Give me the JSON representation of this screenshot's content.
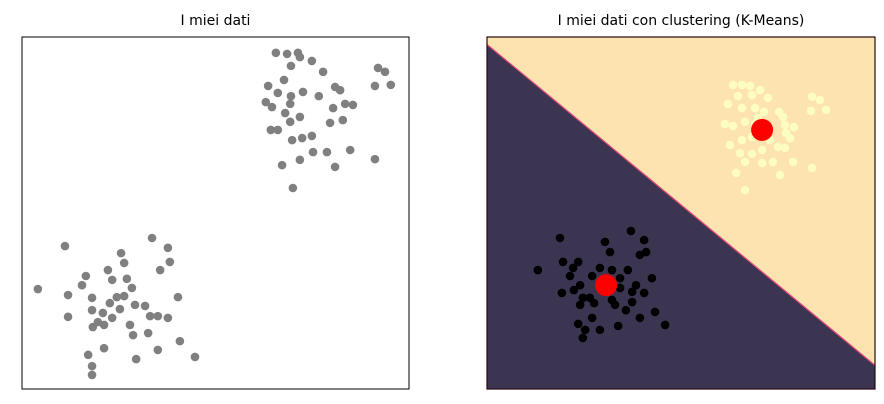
{
  "chart_data": [
    {
      "type": "scatter",
      "title": "I miei dati",
      "xlim": [
        0,
        100
      ],
      "ylim": [
        0,
        100
      ],
      "series": [
        {
          "color": "#808080",
          "x": [
            65.6,
            68.5,
            71.3,
            71.8,
            74.9,
            69.5,
            77.8,
            92.0,
            93.8,
            95.3,
            91.2,
            67.7,
            63.6,
            66.1,
            69.5,
            72.6,
            76.7,
            80.9,
            82.2,
            83.5,
            85.5,
            80.4,
            82.9,
            79.6,
            71.8,
            68.0,
            64.6,
            64.3,
            66.1,
            69.3,
            69.8,
            72.4,
            74.9,
            78.8,
            84.8,
            75.2,
            71.8,
            67.2,
            80.9,
            91.2,
            70.0,
            63.0,
            69.3,
            4.1,
            11.1,
            11.9,
            11.9,
            15.5,
            16.5,
            18.1,
            18.1,
            18.3,
            19.6,
            21.2,
            17.1,
            18.1,
            18.1,
            21.2,
            22.2,
            22.7,
            23.3,
            24.5,
            25.6,
            26.4,
            26.4,
            27.1,
            27.9,
            29.2,
            28.7,
            29.5,
            28.4,
            31.8,
            32.6,
            33.6,
            33.1,
            35.1,
            35.7,
            35.1,
            37.7,
            38.2,
            37.7,
            40.3,
            40.8,
            44.7,
            25.3,
            20.9,
            23.3
          ],
          "values": [
            95.5,
            95.2,
            95.5,
            94.3,
            93.2,
            91.8,
            90.1,
            91.2,
            90.1,
            86.4,
            86.1,
            87.8,
            86.1,
            84.1,
            83.2,
            84.4,
            83.2,
            85.8,
            84.9,
            81.0,
            80.7,
            79.8,
            76.4,
            75.6,
            77.3,
            78.4,
            80.1,
            73.6,
            73.6,
            75.9,
            70.7,
            71.3,
            71.9,
            67.3,
            67.9,
            67.3,
            65.1,
            63.6,
            63.1,
            65.3,
            57.1,
            81.5,
            81.0,
            28.4,
            40.6,
            26.7,
            20.5,
            29.5,
            32.1,
            25.9,
            22.4,
            17.6,
            19.0,
            18.2,
            9.7,
            6.5,
            4.0,
            11.6,
            33.8,
            24.4,
            20.2,
            26.1,
            38.6,
            26.4,
            35.8,
            31.3,
            18.2,
            23.9,
            15.3,
            8.5,
            28.7,
            23.6,
            15.9,
            42.9,
            20.7,
            20.7,
            33.8,
            11.1,
            40.1,
            36.1,
            20.2,
            26.1,
            13.6,
            9.1,
            22.7,
            21.6,
            31.0
          ]
        }
      ]
    },
    {
      "type": "kmeans",
      "title": "I miei dati con clustering (K-Means)",
      "xlim": [
        0,
        100
      ],
      "ylim": [
        0,
        100
      ],
      "boundary_color": "#e0457b",
      "series": [
        {
          "color": "#fcfdbf",
          "region_color": "#fde3b0",
          "x": [
            63.4,
            65.7,
            67.8,
            70.4,
            64.7,
            68.3,
            72.4,
            83.8,
            85.8,
            87.4,
            83.5,
            62.1,
            65.7,
            69.1,
            71.4,
            75.3,
            76.3,
            61.3,
            63.4,
            66.5,
            69.1,
            76.8,
            79.1,
            77.1,
            78.1,
            62.6,
            65.7,
            68.3,
            72.9,
            65.2,
            68.3,
            70.9,
            75.0,
            76.8,
            66.5,
            70.9,
            73.7,
            78.9,
            83.8,
            64.2,
            75.5,
            66.5,
            69.8
          ],
          "values": [
            86.4,
            86.4,
            86.1,
            84.9,
            83.2,
            83.5,
            82.7,
            83.0,
            82.1,
            79.3,
            79.0,
            81.0,
            79.8,
            79.8,
            78.7,
            78.7,
            77.3,
            75.3,
            74.7,
            75.9,
            75.3,
            75.0,
            74.4,
            72.7,
            71.3,
            69.3,
            70.7,
            71.6,
            70.7,
            67.0,
            66.8,
            67.9,
            68.8,
            68.5,
            64.5,
            64.2,
            64.5,
            64.5,
            62.8,
            61.4,
            60.8,
            56.5,
            77.0
          ]
        },
        {
          "color": "#000000",
          "region_color": "#3b3552",
          "x": [
            18.8,
            13.1,
            19.6,
            22.2,
            23.5,
            30.4,
            31.7,
            37.1,
            40.5,
            41.0,
            39.4,
            24.0,
            27.1,
            29.1,
            32.2,
            34.3,
            19.3,
            22.4,
            24.7,
            26.5,
            27.6,
            24.0,
            30.4,
            32.2,
            34.3,
            37.4,
            38.4,
            42.5,
            40.5,
            37.4,
            35.8,
            33.0,
            27.1,
            23.5,
            25.3,
            24.7,
            29.1,
            33.8,
            39.4,
            43.3,
            45.9,
            21.4,
            36.3
          ],
          "values": [
            42.9,
            33.8,
            36.1,
            34.4,
            36.1,
            41.8,
            38.9,
            44.9,
            42.3,
            38.9,
            38.1,
            29.5,
            32.1,
            34.4,
            33.8,
            31.5,
            27.3,
            28.1,
            25.9,
            25.9,
            24.4,
            23.9,
            27.6,
            25.3,
            28.7,
            27.6,
            29.5,
            31.5,
            27.3,
            24.7,
            22.4,
            23.9,
            20.2,
            18.5,
            16.8,
            14.5,
            16.8,
            17.9,
            20.2,
            21.9,
            18.2,
            32.1,
            33.8
          ]
        }
      ],
      "centers": {
        "color": "#ff0000",
        "x": [
          70.9,
          30.7
        ],
        "values": [
          73.6,
          29.5
        ]
      }
    }
  ]
}
